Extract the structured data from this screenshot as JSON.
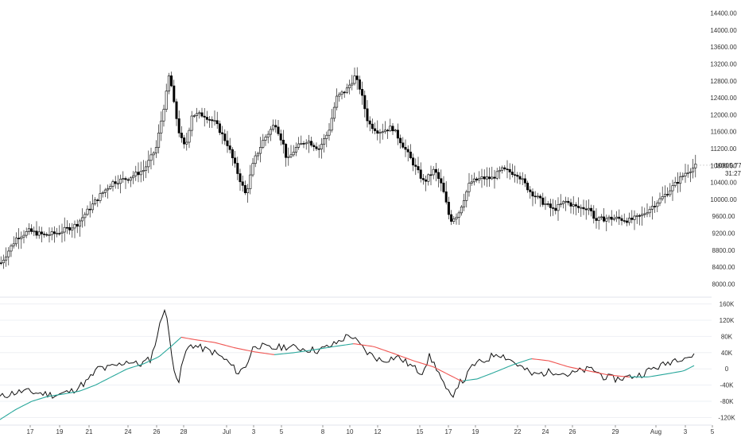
{
  "chart_data": [
    {
      "type": "candlestick",
      "panel": "price",
      "ylim": [
        7800,
        14600
      ],
      "y_ticks": [
        "14400.00",
        "14000.00",
        "13600.00",
        "13200.00",
        "12800.00",
        "12400.00",
        "12000.00",
        "11600.00",
        "11200.00",
        "10800.00",
        "10400.00",
        "10000.00",
        "9600.00",
        "9200.00",
        "8800.00",
        "8400.00",
        "8000.00"
      ],
      "last_price": "10805.77",
      "countdown": "31:27",
      "anchors": [
        [
          0,
          8500
        ],
        [
          20,
          9100
        ],
        [
          35,
          9250
        ],
        [
          55,
          9150
        ],
        [
          70,
          9200
        ],
        [
          95,
          9400
        ],
        [
          125,
          10100
        ],
        [
          140,
          10400
        ],
        [
          160,
          10500
        ],
        [
          180,
          10700
        ],
        [
          195,
          11200
        ],
        [
          208,
          12500
        ],
        [
          212,
          13000
        ],
        [
          218,
          12200
        ],
        [
          225,
          11500
        ],
        [
          232,
          11200
        ],
        [
          240,
          12000
        ],
        [
          255,
          12000
        ],
        [
          270,
          11800
        ],
        [
          285,
          11300
        ],
        [
          300,
          10500
        ],
        [
          308,
          10100
        ],
        [
          318,
          10900
        ],
        [
          330,
          11400
        ],
        [
          345,
          11800
        ],
        [
          355,
          11300
        ],
        [
          360,
          10900
        ],
        [
          370,
          11200
        ],
        [
          385,
          11400
        ],
        [
          400,
          11200
        ],
        [
          412,
          11600
        ],
        [
          422,
          12400
        ],
        [
          435,
          12600
        ],
        [
          445,
          12900
        ],
        [
          452,
          12600
        ],
        [
          462,
          11800
        ],
        [
          475,
          11600
        ],
        [
          492,
          11700
        ],
        [
          505,
          11300
        ],
        [
          520,
          10800
        ],
        [
          532,
          10400
        ],
        [
          545,
          10700
        ],
        [
          555,
          10300
        ],
        [
          565,
          9500
        ],
        [
          575,
          9650
        ],
        [
          590,
          10400
        ],
        [
          605,
          10500
        ],
        [
          618,
          10500
        ],
        [
          630,
          10700
        ],
        [
          650,
          10600
        ],
        [
          665,
          10200
        ],
        [
          680,
          9950
        ],
        [
          695,
          9750
        ],
        [
          710,
          9950
        ],
        [
          725,
          9800
        ],
        [
          740,
          9800
        ],
        [
          748,
          9500
        ],
        [
          760,
          9550
        ],
        [
          775,
          9550
        ],
        [
          790,
          9500
        ],
        [
          805,
          9600
        ],
        [
          820,
          9850
        ],
        [
          835,
          10100
        ],
        [
          850,
          10400
        ],
        [
          862,
          10650
        ],
        [
          875,
          10800
        ]
      ]
    },
    {
      "type": "line",
      "panel": "indicator",
      "ylim": [
        -125000,
        165000
      ],
      "y_ticks": [
        "160K",
        "120K",
        "80K",
        "40K",
        "0",
        "-40K",
        "-80K",
        "-120K"
      ],
      "series": [
        {
          "name": "",
          "color": "#111111",
          "points": [
            [
              0,
              -70000
            ],
            [
              15,
              -60000
            ],
            [
              30,
              -55000
            ],
            [
              50,
              -60000
            ],
            [
              70,
              -65000
            ],
            [
              90,
              -55000
            ],
            [
              110,
              -30000
            ],
            [
              125,
              5000
            ],
            [
              132,
              0
            ],
            [
              140,
              5000
            ],
            [
              150,
              10000
            ],
            [
              160,
              20000
            ],
            [
              175,
              10000
            ],
            [
              190,
              25000
            ],
            [
              200,
              100000
            ],
            [
              208,
              160000
            ],
            [
              215,
              40000
            ],
            [
              220,
              -5000
            ],
            [
              225,
              -30000
            ],
            [
              232,
              35000
            ],
            [
              240,
              60000
            ],
            [
              255,
              50000
            ],
            [
              270,
              40000
            ],
            [
              285,
              20000
            ],
            [
              300,
              -10000
            ],
            [
              310,
              10000
            ],
            [
              320,
              60000
            ],
            [
              340,
              50000
            ],
            [
              360,
              55000
            ],
            [
              380,
              50000
            ],
            [
              400,
              45000
            ],
            [
              420,
              60000
            ],
            [
              440,
              85000
            ],
            [
              452,
              60000
            ],
            [
              462,
              40000
            ],
            [
              480,
              20000
            ],
            [
              500,
              30000
            ],
            [
              515,
              10000
            ],
            [
              530,
              -10000
            ],
            [
              540,
              30000
            ],
            [
              550,
              0
            ],
            [
              560,
              -50000
            ],
            [
              568,
              -70000
            ],
            [
              575,
              -40000
            ],
            [
              585,
              -25000
            ],
            [
              595,
              10000
            ],
            [
              610,
              20000
            ],
            [
              625,
              40000
            ],
            [
              640,
              25000
            ],
            [
              655,
              5000
            ],
            [
              670,
              -15000
            ],
            [
              685,
              -10000
            ],
            [
              700,
              -5000
            ],
            [
              715,
              -15000
            ],
            [
              730,
              -5000
            ],
            [
              745,
              0
            ],
            [
              760,
              -20000
            ],
            [
              775,
              -25000
            ],
            [
              790,
              -20000
            ],
            [
              805,
              -15000
            ],
            [
              820,
              0
            ],
            [
              835,
              10000
            ],
            [
              850,
              25000
            ],
            [
              862,
              30000
            ],
            [
              875,
              30000
            ]
          ]
        },
        {
          "name": "",
          "color": "#26a69a",
          "down_color": "#ef5350",
          "points": [
            [
              0,
              -125000
            ],
            [
              20,
              -100000
            ],
            [
              40,
              -80000
            ],
            [
              60,
              -68000
            ],
            [
              80,
              -62000
            ],
            [
              100,
              -55000
            ],
            [
              120,
              -40000
            ],
            [
              140,
              -20000
            ],
            [
              160,
              0
            ],
            [
              180,
              12000
            ],
            [
              200,
              30000
            ],
            [
              215,
              55000
            ],
            [
              228,
              78000
            ],
            [
              245,
              72000
            ],
            [
              270,
              65000
            ],
            [
              295,
              52000
            ],
            [
              320,
              42000
            ],
            [
              345,
              35000
            ],
            [
              370,
              40000
            ],
            [
              395,
              47000
            ],
            [
              420,
              55000
            ],
            [
              445,
              62000
            ],
            [
              470,
              55000
            ],
            [
              495,
              38000
            ],
            [
              520,
              20000
            ],
            [
              545,
              5000
            ],
            [
              565,
              -15000
            ],
            [
              580,
              -30000
            ],
            [
              600,
              -25000
            ],
            [
              620,
              -10000
            ],
            [
              645,
              10000
            ],
            [
              668,
              25000
            ],
            [
              690,
              20000
            ],
            [
              715,
              5000
            ],
            [
              740,
              -5000
            ],
            [
              765,
              -15000
            ],
            [
              790,
              -20000
            ],
            [
              815,
              -20000
            ],
            [
              840,
              -12000
            ],
            [
              860,
              -5000
            ],
            [
              875,
              10000
            ]
          ]
        }
      ],
      "x_ticks": [
        {
          "label": "17",
          "x": 38
        },
        {
          "label": "19",
          "x": 75
        },
        {
          "label": "21",
          "x": 112
        },
        {
          "label": "24",
          "x": 161
        },
        {
          "label": "26",
          "x": 197
        },
        {
          "label": "28",
          "x": 231
        },
        {
          "label": "Jul",
          "x": 285
        },
        {
          "label": "3",
          "x": 319
        },
        {
          "label": "5",
          "x": 354
        },
        {
          "label": "8",
          "x": 406
        },
        {
          "label": "10",
          "x": 440
        },
        {
          "label": "12",
          "x": 475
        },
        {
          "label": "15",
          "x": 528
        },
        {
          "label": "17",
          "x": 564
        },
        {
          "label": "19",
          "x": 598
        },
        {
          "label": "22",
          "x": 651
        },
        {
          "label": "24",
          "x": 686
        },
        {
          "label": "26",
          "x": 720
        },
        {
          "label": "29",
          "x": 774
        },
        {
          "label": "Aug",
          "x": 825
        },
        {
          "label": "3",
          "x": 862
        },
        {
          "label": "5",
          "x": 896
        }
      ]
    }
  ]
}
